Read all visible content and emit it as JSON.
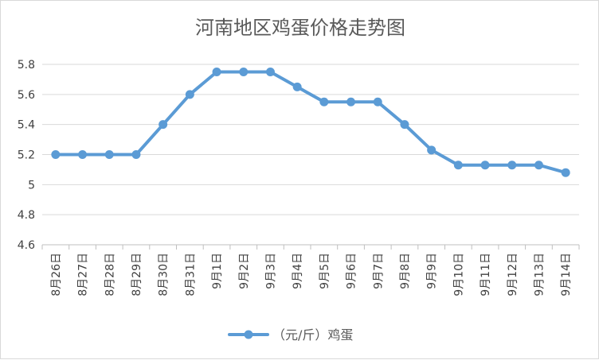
{
  "chart_data": {
    "type": "line",
    "title": "河南地区鸡蛋价格走势图",
    "xlabel": "",
    "ylabel": "",
    "categories": [
      "8月26日",
      "8月27日",
      "8月28日",
      "8月29日",
      "8月30日",
      "8月31日",
      "9月1日",
      "9月2日",
      "9月3日",
      "9月4日",
      "9月5日",
      "9月6日",
      "9月7日",
      "9月8日",
      "9月9日",
      "9月10日",
      "9月11日",
      "9月12日",
      "9月13日",
      "9月14日"
    ],
    "series": [
      {
        "name": "（元/斤）鸡蛋",
        "values": [
          5.2,
          5.2,
          5.2,
          5.2,
          5.4,
          5.6,
          5.75,
          5.75,
          5.75,
          5.65,
          5.55,
          5.55,
          5.55,
          5.4,
          5.23,
          5.13,
          5.13,
          5.13,
          5.13,
          5.08
        ],
        "color": "#5b9bd5"
      }
    ],
    "ylim": [
      4.6,
      5.8
    ],
    "yticks": [
      "4.6",
      "4.8",
      "5",
      "5.2",
      "5.4",
      "5.6",
      "5.8"
    ],
    "grid": true,
    "legend": "bottom-center"
  }
}
